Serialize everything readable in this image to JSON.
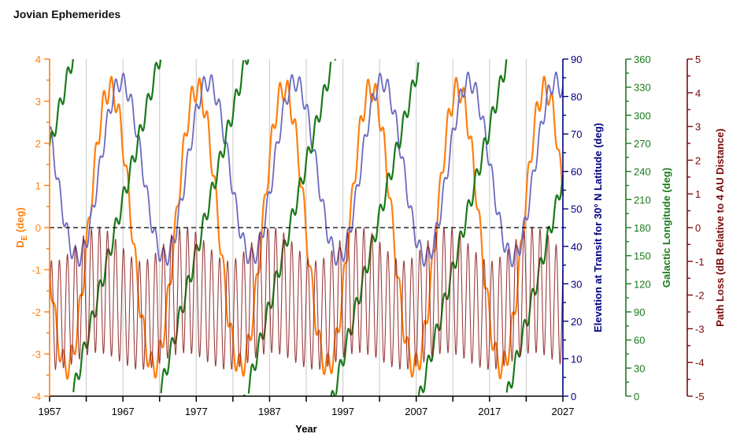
{
  "chart_data": {
    "type": "line",
    "title": "Jovian Ephemerides",
    "xlabel": "Year",
    "xlim": [
      1957,
      2027
    ],
    "xticks": [
      "1957",
      "1967",
      "1977",
      "1987",
      "1997",
      "2007",
      "2017",
      "2027"
    ],
    "x_minor_tick_step": 5,
    "grid": "vertical lines every 5 years",
    "reference_line": {
      "axis": "De",
      "value": 0,
      "style": "dashed",
      "color": "#000000"
    },
    "axes": [
      {
        "id": "De",
        "position": "left",
        "label_main": "D",
        "label_sub": "E",
        "label_rest": " (deg)",
        "ylim": [
          -4,
          4
        ],
        "ticks": [
          "4",
          "3",
          "2",
          "1",
          "0",
          "-1",
          "-2",
          "-3",
          "-4"
        ],
        "tick_values": [
          4,
          3,
          2,
          1,
          0,
          -1,
          -2,
          -3,
          -4
        ],
        "color": "#ff7f0e"
      },
      {
        "id": "elev",
        "position": "right",
        "label": "Elevation at Transit for 30° N Latitude (deg)",
        "ylim": [
          0,
          90
        ],
        "ticks": [
          "90",
          "80",
          "70",
          "60",
          "50",
          "40",
          "30",
          "20",
          "10",
          "0"
        ],
        "tick_values": [
          90,
          80,
          70,
          60,
          50,
          40,
          30,
          20,
          10,
          0
        ],
        "color": "#000080"
      },
      {
        "id": "glon",
        "position": "right-2",
        "label": "Galactic Longitude (deg)",
        "ylim": [
          0,
          360
        ],
        "ticks": [
          "360",
          "330",
          "300",
          "270",
          "240",
          "210",
          "180",
          "150",
          "120",
          "90",
          "60",
          "30",
          "0"
        ],
        "tick_values": [
          360,
          330,
          300,
          270,
          240,
          210,
          180,
          150,
          120,
          90,
          60,
          30,
          0
        ],
        "color": "#1a7a1a"
      },
      {
        "id": "ploss",
        "position": "right-3",
        "label": "Path Loss (dB Relative to 4 AU Distance)",
        "ylim": [
          -5,
          5
        ],
        "ticks": [
          "5",
          "4",
          "3",
          "2",
          "1",
          "0",
          "-1",
          "-2",
          "-3",
          "-4",
          "-5"
        ],
        "tick_values": [
          5,
          4,
          3,
          2,
          1,
          0,
          -1,
          -2,
          -3,
          -4,
          -5
        ],
        "color": "#7a0a0a"
      }
    ],
    "x": [
      1957,
      1958,
      1959,
      1960,
      1961,
      1962,
      1963,
      1964,
      1965,
      1966,
      1967,
      1968,
      1969,
      1970,
      1971,
      1972,
      1973,
      1974,
      1975,
      1976,
      1977,
      1978,
      1979,
      1980,
      1981,
      1982,
      1983,
      1984,
      1985,
      1986,
      1987,
      1988,
      1989,
      1990,
      1991,
      1992,
      1993,
      1994,
      1995,
      1996,
      1997,
      1998,
      1999,
      2000,
      2001,
      2002,
      2003,
      2004,
      2005,
      2006,
      2007,
      2008,
      2009,
      2010,
      2011,
      2012,
      2013,
      2014,
      2015,
      2016,
      2017,
      2018,
      2019,
      2020,
      2021,
      2022,
      2023,
      2024,
      2025,
      2026,
      2027
    ],
    "series": [
      {
        "name": "De",
        "axis": "De",
        "color": "#ff7f0e",
        "annual_ripple": 0.3,
        "values": [
          -1.08,
          -2.51,
          -3.25,
          -3.1,
          -2.1,
          -0.52,
          1.2,
          2.59,
          3.27,
          3.05,
          2.0,
          0.4,
          -1.31,
          -2.66,
          -3.28,
          -3.0,
          -1.9,
          -0.28,
          1.42,
          2.73,
          3.29,
          2.95,
          1.8,
          0.16,
          -1.53,
          -2.8,
          -3.3,
          -2.89,
          -1.7,
          -0.03,
          1.64,
          2.86,
          3.3,
          2.83,
          1.59,
          -0.09,
          -1.74,
          -2.92,
          -3.3,
          -2.77,
          -1.48,
          0.21,
          1.85,
          2.98,
          3.29,
          2.7,
          1.37,
          -0.33,
          -1.95,
          -3.03,
          -3.28,
          -2.63,
          -1.26,
          0.45,
          2.04,
          3.07,
          3.26,
          2.55,
          1.15,
          -0.58,
          -2.14,
          -3.12,
          -3.24,
          -2.47,
          -1.03,
          0.7,
          2.23,
          3.15,
          3.21,
          2.39,
          0.91
        ]
      },
      {
        "name": "Elevation at Transit (30° N)",
        "axis": "elev",
        "color": "#6b6bbf",
        "annual_ripple": 2.5,
        "values": [
          70.9,
          58.9,
          47.3,
          39.3,
          37.1,
          41.3,
          50.9,
          63.0,
          74.5,
          82.1,
          83.8,
          79.1,
          69.4,
          57.1,
          45.8,
          38.6,
          37.3,
          42.4,
          52.5,
          64.7,
          75.8,
          82.7,
          83.5,
          78.0,
          67.7,
          55.4,
          44.5,
          38.0,
          37.7,
          43.6,
          54.1,
          66.4,
          77.1,
          83.2,
          83.1,
          76.8,
          66.0,
          53.7,
          43.3,
          37.6,
          38.1,
          44.8,
          55.8,
          68.1,
          78.3,
          83.6,
          82.6,
          75.5,
          64.3,
          52.1,
          42.2,
          37.3,
          38.7,
          46.2,
          57.5,
          69.7,
          79.4,
          83.9,
          81.9,
          74.1,
          62.6,
          50.5,
          41.1,
          37.1,
          39.4,
          47.6,
          59.3,
          71.3,
          80.4,
          84.0,
          81.2
        ]
      },
      {
        "name": "Galactic Longitude",
        "axis": "glon",
        "color": "#1a7a1a",
        "annual_ripple": 10,
        "values": [
          265.9,
          296.3,
          326.6,
          357.0,
          27.3,
          57.7,
          88.0,
          118.4,
          148.7,
          179.1,
          209.5,
          239.8,
          270.2,
          300.5,
          330.9,
          1.2,
          31.6,
          61.9,
          92.3,
          122.6,
          153.0,
          183.3,
          213.7,
          244.1,
          274.4,
          304.8,
          335.1,
          5.5,
          35.8,
          66.2,
          96.5,
          126.9,
          157.2,
          187.6,
          218.0,
          248.3,
          278.7,
          309.0,
          339.4,
          9.7,
          40.1,
          70.4,
          100.8,
          131.1,
          161.5,
          191.9,
          222.2,
          252.6,
          282.9,
          313.3,
          343.6,
          14.0,
          44.3,
          74.7,
          105.0,
          135.4,
          165.7,
          196.1,
          226.5,
          256.8,
          287.2,
          317.5,
          347.9,
          18.2,
          48.6,
          78.9,
          109.3,
          139.6,
          170.0,
          200.4,
          230.7
        ]
      },
      {
        "name": "Path Loss",
        "axis": "ploss",
        "color": "#8b1a1a",
        "opposition_peaks": {
          "x": [
            1957.25,
            1958.34,
            1959.43,
            1960.53,
            1961.62,
            1962.71,
            1963.8,
            1964.89,
            1965.99,
            1967.08,
            1968.17,
            1969.26,
            1970.36,
            1971.45,
            1972.54,
            1973.63,
            1974.73,
            1975.82,
            1976.91,
            1978.01,
            1979.1,
            1980.19,
            1981.28,
            1982.38,
            1983.47,
            1984.56,
            1985.65,
            1986.75,
            1987.84,
            1988.93,
            1990.02,
            1991.12,
            1992.21,
            1993.3,
            1994.39,
            1995.49,
            1996.58,
            1997.67,
            1998.76,
            1999.86,
            2000.95,
            2002.04,
            2003.13,
            2004.23,
            2005.32,
            2006.41,
            2007.5,
            2008.6,
            2009.69,
            2010.78,
            2011.87,
            2012.97,
            2014.06,
            2015.15,
            2016.24,
            2017.34,
            2018.43,
            2019.52,
            2020.61,
            2021.71,
            2022.8,
            2023.89,
            2024.98,
            2026.08
          ],
          "values": [
            -0.99,
            -0.97,
            -0.8,
            -0.53,
            -0.25,
            -0.05,
            0.0,
            -0.11,
            -0.35,
            -0.63,
            -0.88,
            -1.0,
            -0.95,
            -0.76,
            -0.49,
            -0.22,
            -0.04,
            -0.01,
            -0.14,
            -0.39,
            -0.67,
            -0.9,
            -1.0,
            -0.93,
            -0.73,
            -0.45,
            -0.18,
            -0.02,
            -0.02,
            -0.17,
            -0.43,
            -0.71,
            -0.93,
            -1.0,
            -0.91,
            -0.69,
            -0.4,
            -0.15,
            -0.01,
            -0.03,
            -0.18,
            -0.44,
            -0.72,
            -0.93,
            -1.0,
            -0.91,
            -0.68,
            -0.4,
            -0.15,
            -0.01,
            -0.03,
            -0.21,
            -0.48,
            -0.75,
            -0.95,
            -1.0,
            -0.88,
            -0.65,
            -0.36,
            -0.12,
            0.0,
            -0.05,
            -0.24,
            -0.52
          ]
        },
        "conjunction_troughs": {
          "x": [
            1957.8,
            1958.89,
            1959.98,
            1961.07,
            1962.16,
            1963.25,
            1964.35,
            1965.44,
            1966.53,
            1967.62,
            1968.72,
            1969.81,
            1970.9,
            1971.99,
            1973.09,
            1974.18,
            1975.27,
            1976.36,
            1977.46,
            1978.55,
            1979.64,
            1980.74,
            1981.83,
            1982.92,
            1984.01,
            1985.11,
            1986.2,
            1987.29,
            1988.38,
            1989.48,
            1990.57,
            1991.66,
            1992.75,
            1993.85,
            1994.94,
            1996.03,
            1997.13,
            1998.22,
            1999.31,
            2000.4,
            2001.5,
            2002.59,
            2003.68,
            2004.77,
            2005.86,
            2006.96,
            2008.05,
            2009.14,
            2010.23,
            2011.33,
            2012.42,
            2013.51,
            2014.6,
            2015.7,
            2016.79,
            2017.88,
            2018.97,
            2020.07,
            2021.16,
            2022.25,
            2023.35,
            2024.44,
            2025.53,
            2026.62
          ],
          "values": [
            -4.2,
            -4.15,
            -4.04,
            -3.89,
            -3.77,
            -3.7,
            -3.72,
            -3.81,
            -3.95,
            -4.08,
            -4.18,
            -4.2,
            -4.14,
            -4.02,
            -3.87,
            -3.76,
            -3.7,
            -3.73,
            -3.83,
            -3.97,
            -4.1,
            -4.19,
            -4.19,
            -4.12,
            -4.0,
            -3.85,
            -3.74,
            -3.7,
            -3.74,
            -3.85,
            -3.99,
            -4.12,
            -4.19,
            -4.19,
            -4.11,
            -3.97,
            -3.83,
            -3.73,
            -3.7,
            -3.75,
            -3.85,
            -3.99,
            -4.12,
            -4.19,
            -4.19,
            -4.1,
            -3.97,
            -3.83,
            -3.73,
            -3.7,
            -3.75,
            -3.87,
            -4.01,
            -4.13,
            -4.2,
            -4.18,
            -4.09,
            -3.95,
            -3.82,
            -3.72,
            -3.7,
            -3.77,
            -3.89,
            -4.03
          ]
        }
      }
    ]
  }
}
